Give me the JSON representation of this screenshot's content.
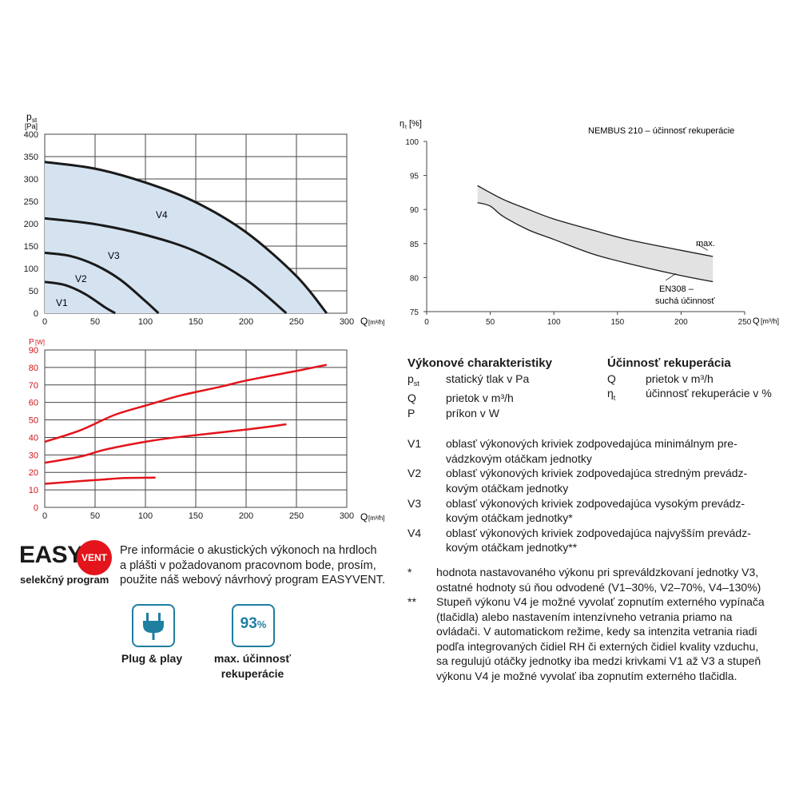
{
  "chart_data": [
    {
      "type": "area",
      "ylabel_symbol": "p",
      "ylabel_sub": "st",
      "yunit": "[Pa]",
      "xlabel": "Q",
      "xunit": "[m³/h]",
      "xlim": [
        0,
        300
      ],
      "ylim": [
        0,
        400
      ],
      "xticks": [
        0,
        50,
        100,
        150,
        200,
        250,
        300
      ],
      "yticks": [
        0,
        50,
        100,
        150,
        200,
        250,
        300,
        350,
        400
      ],
      "grid": true,
      "series": [
        {
          "name": "V1",
          "x": [
            0,
            20,
            40,
            60,
            70
          ],
          "y": [
            70,
            63,
            43,
            13,
            0
          ]
        },
        {
          "name": "V2",
          "x": [
            0,
            25,
            50,
            75,
            100,
            113
          ],
          "y": [
            135,
            128,
            108,
            75,
            27,
            0
          ]
        },
        {
          "name": "V3",
          "x": [
            0,
            50,
            100,
            150,
            200,
            240
          ],
          "y": [
            212,
            199,
            175,
            138,
            75,
            0
          ]
        },
        {
          "name": "V4",
          "x": [
            0,
            50,
            100,
            150,
            200,
            250,
            280
          ],
          "y": [
            338,
            323,
            292,
            248,
            181,
            83,
            0
          ]
        }
      ]
    },
    {
      "type": "line",
      "ylabel": "P",
      "yunit": "[W]",
      "xlabel": "Q",
      "xunit": "[m³/h]",
      "xlim": [
        0,
        300
      ],
      "ylim": [
        0,
        90
      ],
      "xticks": [
        0,
        50,
        100,
        150,
        200,
        250,
        300
      ],
      "yticks": [
        0,
        10,
        20,
        30,
        40,
        50,
        60,
        70,
        80,
        90
      ],
      "grid": true,
      "series": [
        {
          "name": "V4",
          "x": [
            0,
            35,
            70,
            105,
            135,
            175,
            200,
            250,
            280
          ],
          "y": [
            37.5,
            44,
            53,
            59,
            64,
            69,
            72.5,
            78,
            81.5
          ]
        },
        {
          "name": "V3",
          "x": [
            0,
            35,
            60,
            100,
            130,
            200,
            240
          ],
          "y": [
            25.5,
            29,
            33,
            37.5,
            40,
            44.5,
            47.5
          ]
        },
        {
          "name": "V2",
          "x": [
            0,
            35,
            60,
            80,
            110
          ],
          "y": [
            13.5,
            15,
            16,
            16.8,
            17
          ]
        }
      ]
    },
    {
      "type": "area",
      "title": "NEMBUS 210 – účinnosť rekuperácie",
      "ylabel_symbol": "η",
      "ylabel_sub": "t",
      "yunit": "[%]",
      "xlabel": "Q",
      "xunit": "[m³/h]",
      "xlim": [
        0,
        250
      ],
      "ylim": [
        75,
        100
      ],
      "xticks": [
        0,
        50,
        100,
        150,
        200,
        250
      ],
      "yticks": [
        75,
        80,
        85,
        90,
        95,
        100
      ],
      "grid": true,
      "series": [
        {
          "name": "max.",
          "x": [
            40,
            60,
            80,
            100,
            130,
            160,
            200,
            225
          ],
          "y": [
            93.5,
            91.5,
            90,
            88.6,
            87,
            85.5,
            84,
            83.1
          ]
        },
        {
          "name": "EN308 – suchá účinnosť",
          "x": [
            40,
            50,
            60,
            80,
            100,
            130,
            160,
            200,
            225
          ],
          "y": [
            91,
            90.5,
            89,
            87,
            85.6,
            83.5,
            82,
            80.3,
            79.4
          ]
        }
      ],
      "annotations": [
        "max.",
        "EN308 –",
        "suchá účinnosť"
      ]
    }
  ],
  "legend": {
    "perf_title": "Výkonové charakteristiky",
    "perf_items": [
      {
        "sym": "p",
        "sub": "st",
        "text": "statický tlak v Pa"
      },
      {
        "sym": "Q",
        "sub": "",
        "text": "prietok v m³/h"
      },
      {
        "sym": "P",
        "sub": "",
        "text": "príkon v W"
      }
    ],
    "eff_title": "Účinnosť rekuperácia",
    "eff_items": [
      {
        "sym": "Q",
        "sub": "",
        "text": "prietok v m³/h"
      },
      {
        "sym": "η",
        "sub": "t",
        "text": "účinnosť rekuperácie v %"
      }
    ],
    "v_items": [
      {
        "sym": "V1",
        "line1": "oblasť výkonových kriviek zodpovedajúca minimálnym pre-",
        "line2": "vádzkovým otáčkam jednotky"
      },
      {
        "sym": "V2",
        "line1": "oblasť výkonových kriviek zodpovedajúca stredným prevádz-",
        "line2": "kovým otáčkam jednotky"
      },
      {
        "sym": "V3",
        "line1": "oblasť výkonových kriviek zodpovedajúca vysokým prevádz-",
        "line2": "kovým otáčkam jednotky*"
      },
      {
        "sym": "V4",
        "line1": "oblasť výkonových kriviek zodpovedajúca najvyšším prevádz-",
        "line2": "kovým otáčkam jednotky**"
      }
    ],
    "notes": [
      {
        "sym": "*",
        "lines": [
          "hodnota nastavovaného výkonu pri spreváldzkovaní jednotky V3,",
          "ostatné hodnoty sú ňou odvodené (V1–30%, V2–70%, V4–130%)"
        ]
      },
      {
        "sym": "**",
        "lines": [
          "Stupeň výkonu V4 je možné vyvolať zopnutím externého vypínača",
          "(tlačidla) alebo nastavením intenzívneho vetrania priamo na",
          "ovládači. V automatickom režime, kedy sa intenzita vetrania riadi",
          "podľa integrovaných čidiel RH či externých čidiel kvality vzduchu,",
          "sa regulujú otáčky jednotky iba medzi krivkami V1 až V3 a stupeň",
          "výkonu V4 je možné vyvolať iba zopnutím externého tlačidla."
        ]
      }
    ]
  },
  "easyvent": {
    "logo_easy": "EASY",
    "logo_vent": "VENT",
    "caption": "selekčný program",
    "info_lines": [
      "Pre informácie o akustických výkonoch na hrdloch",
      "a plášti v požadovanom pracovnom bode, prosím,",
      "použite náš webový návrhový program EASYVENT."
    ]
  },
  "badges": [
    {
      "icon": "plug-icon",
      "label_lines": [
        "Plug & play"
      ]
    },
    {
      "value": "93",
      "unit": "%",
      "label_lines": [
        "max. účinnosť",
        "rekuperácie"
      ]
    }
  ],
  "colors": {
    "area_fill": "#d5e3f1",
    "curve": "#1a1a1a",
    "power": "#e3141b",
    "eff_band": "#e2e2e2",
    "grid": "#444444",
    "red_axis": "#d0141b",
    "badge": "#1e7fa0"
  }
}
